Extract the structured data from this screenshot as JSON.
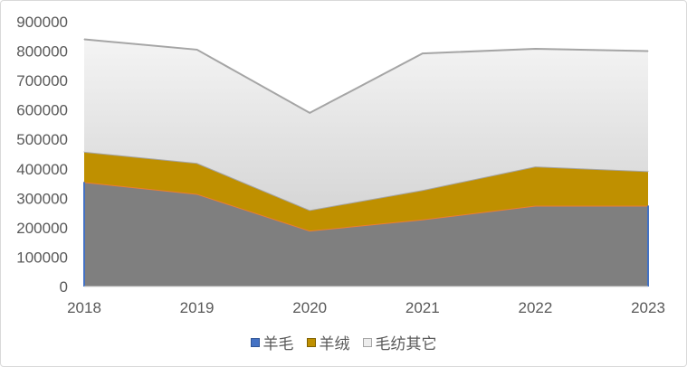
{
  "chart_data": {
    "type": "area",
    "stacked": true,
    "categories": [
      "2018",
      "2019",
      "2020",
      "2021",
      "2022",
      "2023"
    ],
    "series": [
      {
        "name": "羊毛",
        "values": [
          355000,
          315000,
          190000,
          228000,
          275000,
          275000
        ],
        "fill": "#7f7f7f",
        "line": "#ed7d31",
        "legend_fill": "#4472c4",
        "legend_border": "#2f5597"
      },
      {
        "name": "羊绒",
        "values": [
          103000,
          105000,
          70000,
          100000,
          133000,
          117000
        ],
        "fill": "#bf9000",
        "line": "#a5a5a5",
        "legend_fill": "#bf9000",
        "legend_border": "#7f6000"
      },
      {
        "name": "毛纺其它",
        "values": [
          382000,
          385000,
          330000,
          464000,
          400000,
          408000
        ],
        "fill": "#e8e8e8",
        "line": "#a5a5a5",
        "legend_fill": "#ededed",
        "legend_border": "#a5a5a5"
      }
    ],
    "ylim": [
      0,
      900000
    ],
    "yticks": [
      "0",
      "100000",
      "200000",
      "300000",
      "400000",
      "500000",
      "600000",
      "700000",
      "800000",
      "900000"
    ],
    "grid": false,
    "legend": "bottom",
    "title": "",
    "xlabel": "",
    "ylabel": ""
  }
}
